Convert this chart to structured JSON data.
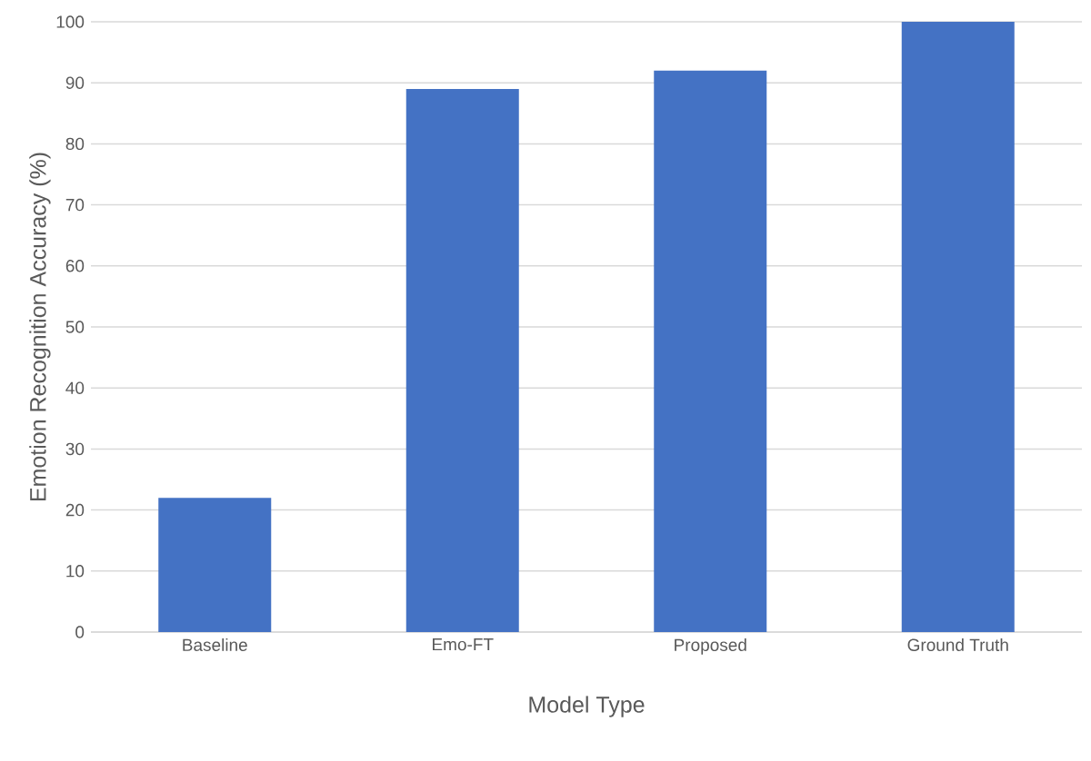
{
  "chart_data": {
    "type": "bar",
    "xlabel": "Model Type",
    "ylabel": "Emotion Recognition Accuracy (%)",
    "categories": [
      "Baseline",
      "Emo-FT",
      "Proposed",
      "Ground Truth"
    ],
    "values": [
      22,
      89,
      92,
      100
    ],
    "color": "#4472c4",
    "ylim": [
      0,
      100
    ],
    "yticks": [
      0,
      10,
      20,
      30,
      40,
      50,
      60,
      70,
      80,
      90,
      100
    ],
    "grid": "y"
  }
}
